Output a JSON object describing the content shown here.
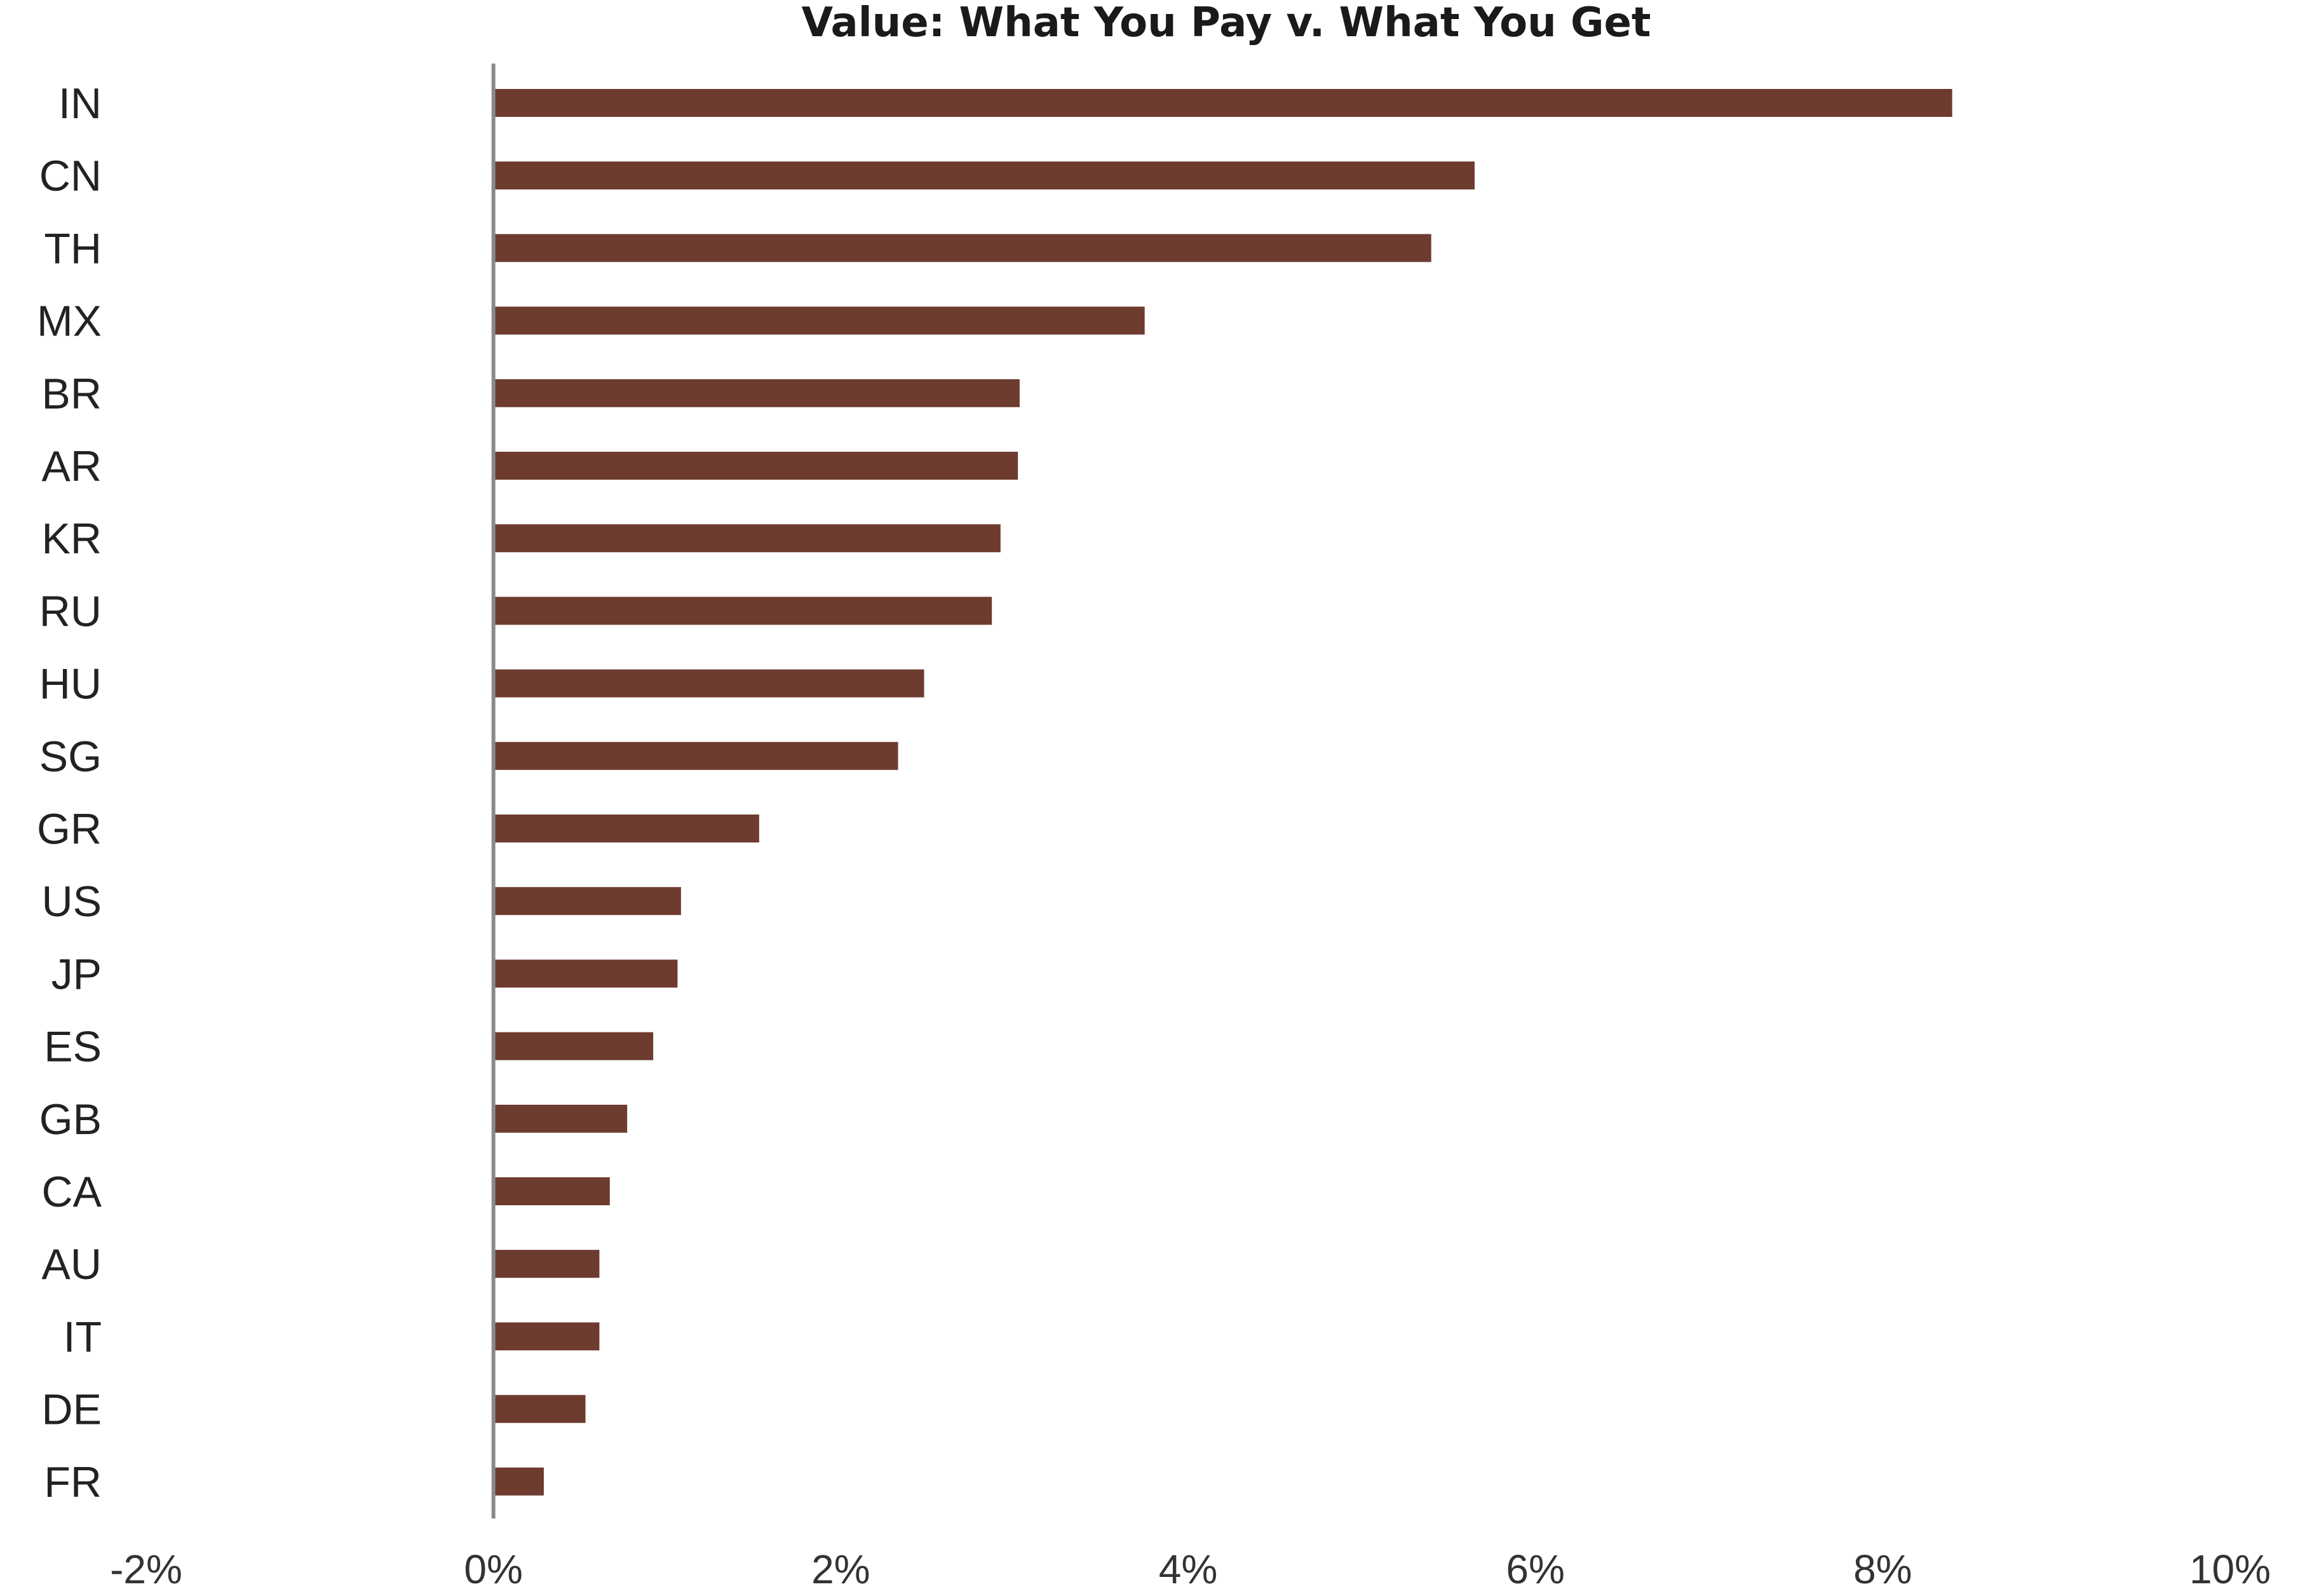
{
  "chart_data": {
    "type": "bar",
    "orientation": "horizontal",
    "title": "Value: What You Pay v. What You Get",
    "categories": [
      "IN",
      "CN",
      "TH",
      "MX",
      "BR",
      "AR",
      "KR",
      "RU",
      "HU",
      "SG",
      "GR",
      "US",
      "JP",
      "ES",
      "GB",
      "CA",
      "AU",
      "IT",
      "DE",
      "FR"
    ],
    "values": [
      8.4,
      5.65,
      5.4,
      3.75,
      3.03,
      3.02,
      2.92,
      2.87,
      2.48,
      2.33,
      1.53,
      1.08,
      1.06,
      0.92,
      0.77,
      0.67,
      0.61,
      0.61,
      0.53,
      0.29
    ],
    "xlim": [
      -2,
      10
    ],
    "xticks": [
      -2,
      0,
      2,
      4,
      6,
      8,
      10
    ],
    "xtick_labels": [
      "-2%",
      "0%",
      "2%",
      "4%",
      "6%",
      "8%",
      "10%"
    ],
    "grid": false,
    "legend": "none",
    "bar_color": "#6e3b2f",
    "axis_color": "#8a8a8a"
  }
}
